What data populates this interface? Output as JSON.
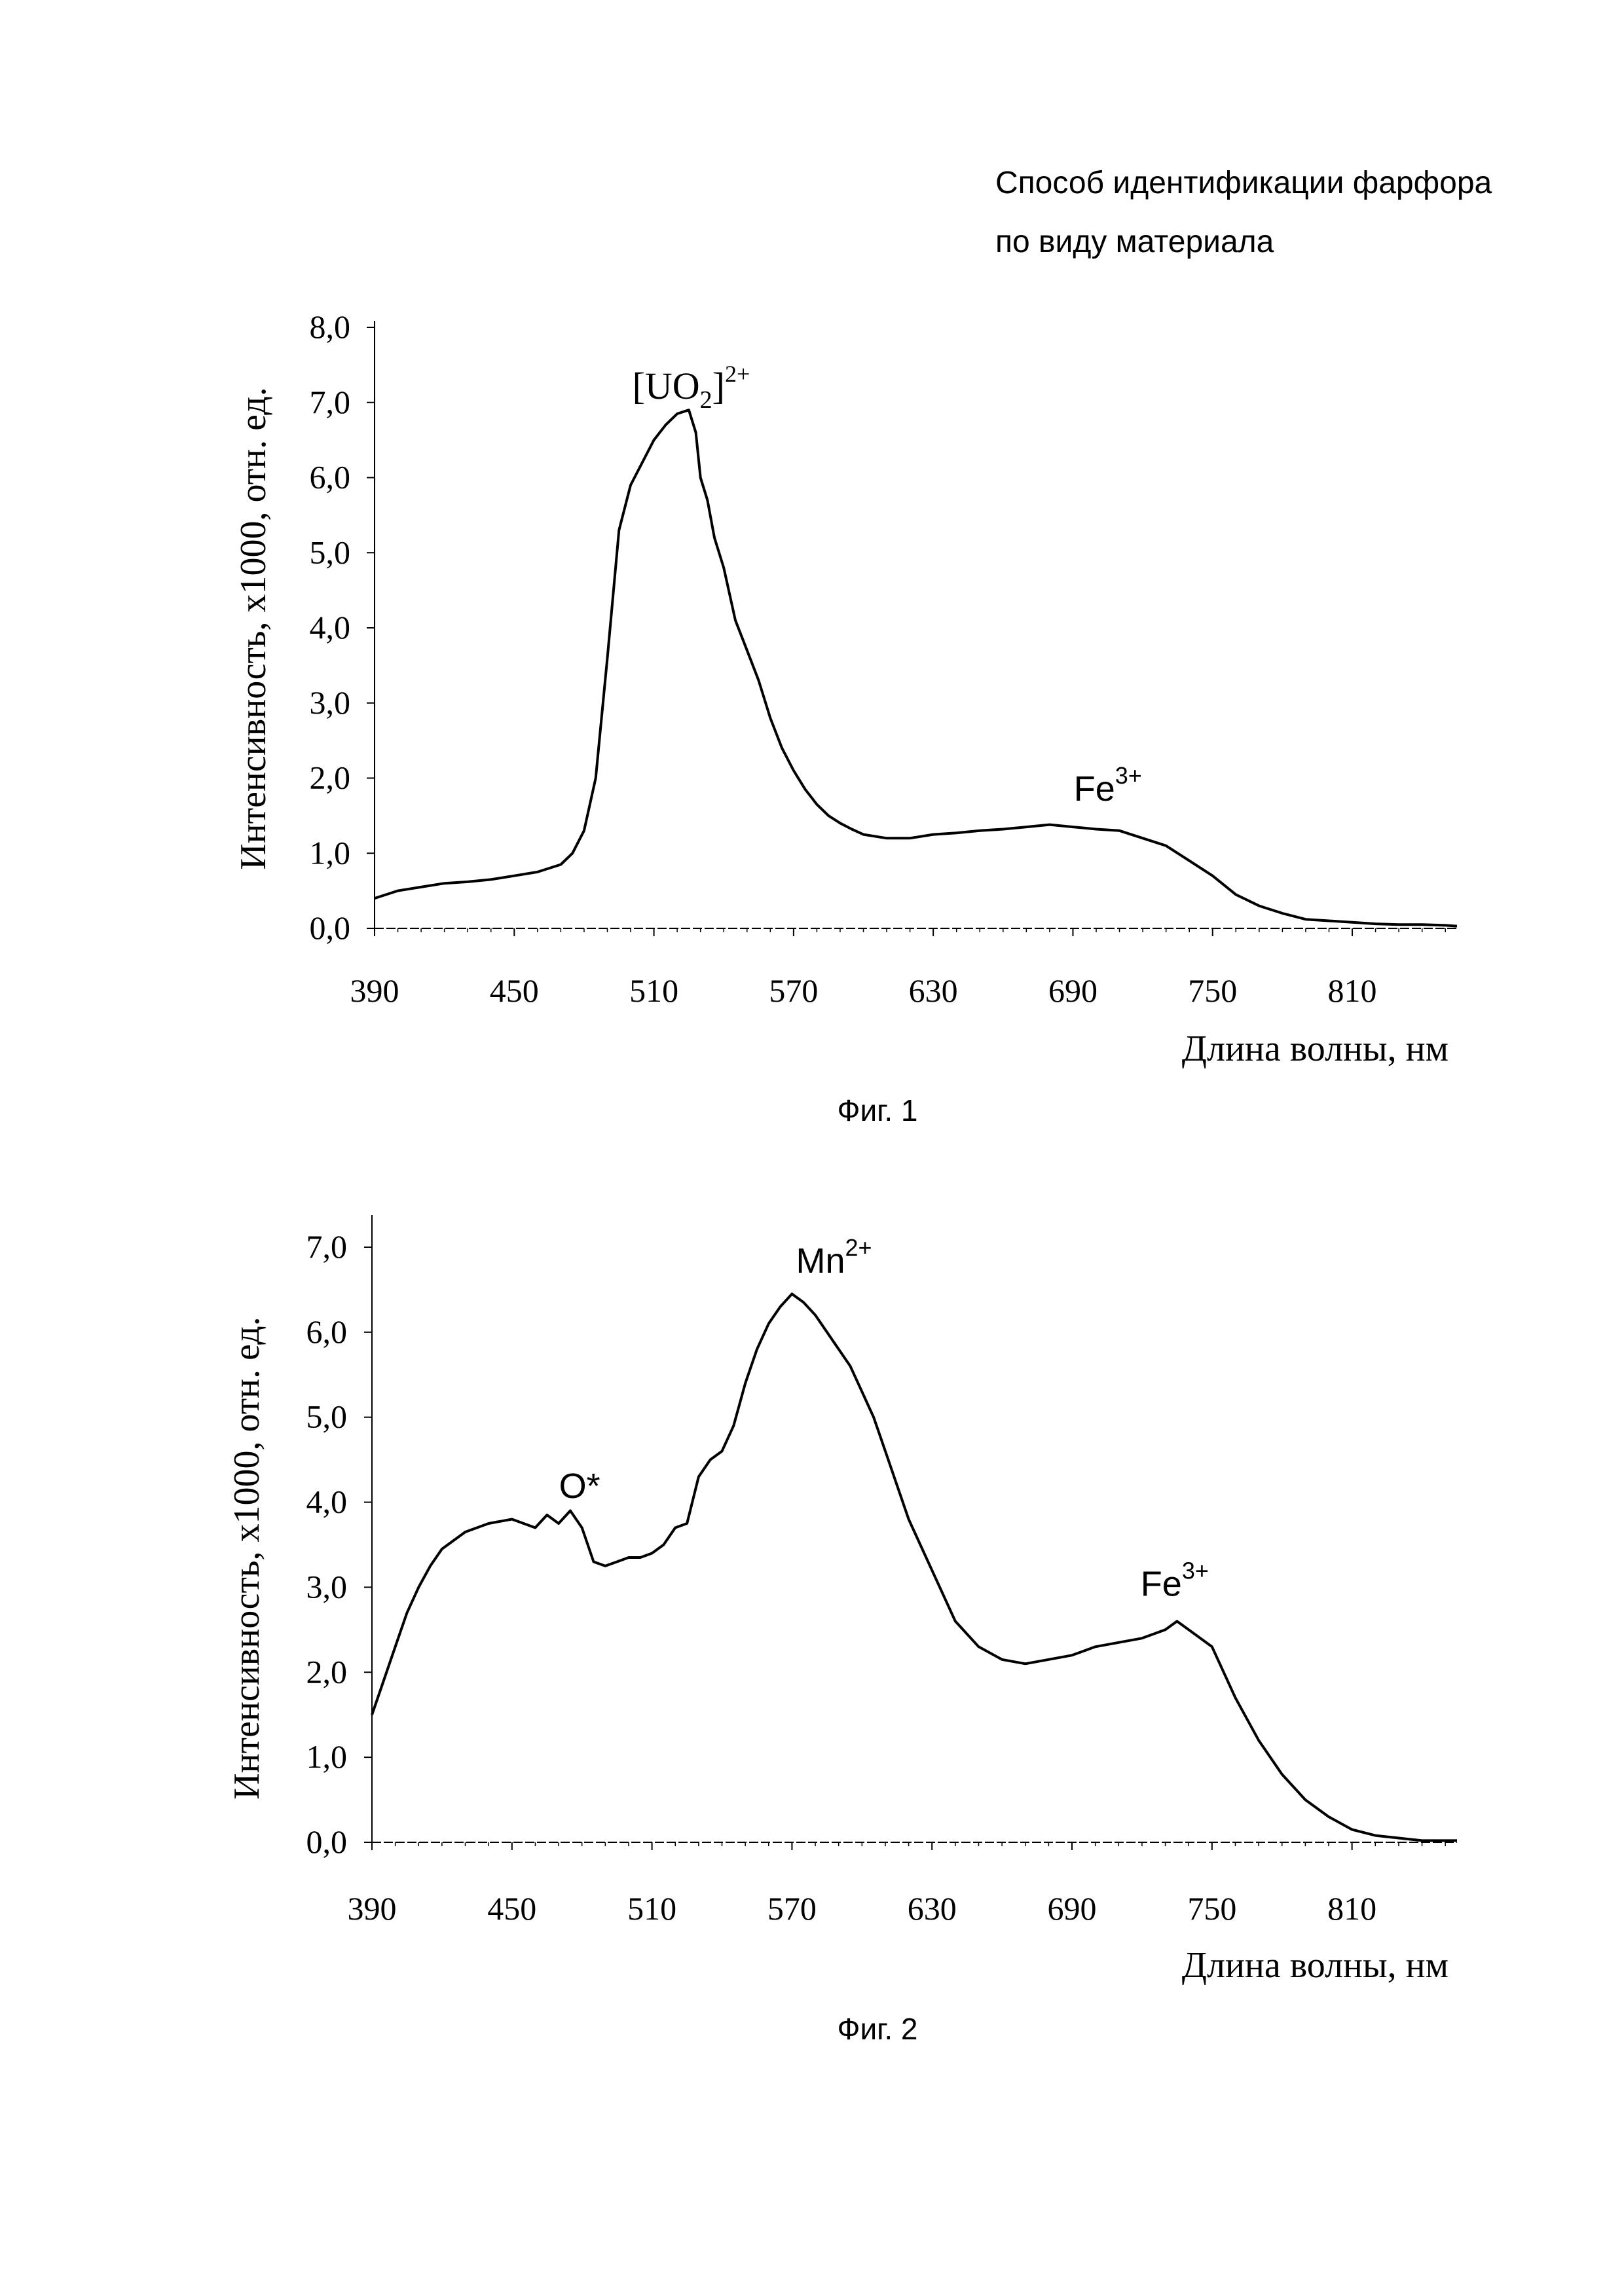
{
  "header": {
    "line1": "Способ идентификации фарфора",
    "line2": "по виду материала"
  },
  "chart_data": [
    {
      "type": "line",
      "caption": "Фиг. 1",
      "xlabel": "Длина волны, нм",
      "ylabel": "Интенсивность,  х1000, отн. ед.",
      "xlim": [
        390,
        855
      ],
      "ylim": [
        0,
        8
      ],
      "xticks": [
        "390",
        "450",
        "510",
        "570",
        "630",
        "690",
        "750",
        "810"
      ],
      "yticks": [
        "0,0",
        "1,0",
        "2,0",
        "3,0",
        "4,0",
        "5,0",
        "6,0",
        "7,0",
        "8,0"
      ],
      "annotations": [
        {
          "base": "[UO",
          "sub": "2",
          "close": "]",
          "sup": "2+",
          "x": 526,
          "y": 7.05
        },
        {
          "base": "Fe",
          "sup": "3+",
          "x": 705,
          "y": 1.7
        }
      ],
      "series": [
        {
          "name": "spectrum",
          "x": [
            390,
            400,
            410,
            420,
            430,
            440,
            450,
            460,
            470,
            475,
            480,
            485,
            490,
            495,
            500,
            505,
            510,
            515,
            520,
            525,
            528,
            530,
            533,
            536,
            540,
            545,
            550,
            555,
            560,
            565,
            570,
            575,
            580,
            585,
            590,
            595,
            600,
            610,
            620,
            630,
            640,
            650,
            660,
            670,
            680,
            690,
            700,
            710,
            720,
            730,
            740,
            750,
            760,
            770,
            780,
            790,
            800,
            810,
            820,
            830,
            840,
            850,
            855
          ],
          "y": [
            0.4,
            0.5,
            0.55,
            0.6,
            0.62,
            0.65,
            0.7,
            0.75,
            0.85,
            1.0,
            1.3,
            2.0,
            3.6,
            5.3,
            5.9,
            6.2,
            6.5,
            6.7,
            6.85,
            6.9,
            6.6,
            6.0,
            5.7,
            5.2,
            4.8,
            4.1,
            3.7,
            3.3,
            2.8,
            2.4,
            2.1,
            1.85,
            1.65,
            1.5,
            1.4,
            1.32,
            1.25,
            1.2,
            1.2,
            1.25,
            1.27,
            1.3,
            1.32,
            1.35,
            1.38,
            1.35,
            1.32,
            1.3,
            1.2,
            1.1,
            0.9,
            0.7,
            0.45,
            0.3,
            0.2,
            0.12,
            0.1,
            0.08,
            0.06,
            0.05,
            0.05,
            0.04,
            0.03
          ]
        }
      ]
    },
    {
      "type": "line",
      "caption": "Фиг. 2",
      "xlabel": "Длина волны, нм",
      "ylabel": "Интенсивность,  х1000, отн. ед.",
      "xlim": [
        390,
        855
      ],
      "ylim": [
        0,
        7.3
      ],
      "xticks": [
        "390",
        "450",
        "510",
        "570",
        "630",
        "690",
        "750",
        "810"
      ],
      "yticks": [
        "0,0",
        "1,0",
        "2,0",
        "3,0",
        "4,0",
        "5,0",
        "6,0",
        "7,0"
      ],
      "annotations": [
        {
          "base": "O*",
          "x": 479,
          "y": 4.05
        },
        {
          "base": "Mn",
          "sup": "2+",
          "x": 588,
          "y": 6.7
        },
        {
          "base": "Fe",
          "sup": "3+",
          "x": 734,
          "y": 2.9
        }
      ],
      "series": [
        {
          "name": "spectrum",
          "x": [
            390,
            395,
            400,
            405,
            410,
            415,
            420,
            425,
            430,
            440,
            450,
            460,
            465,
            470,
            475,
            480,
            485,
            490,
            495,
            500,
            505,
            510,
            515,
            520,
            525,
            530,
            535,
            540,
            545,
            550,
            555,
            560,
            565,
            570,
            575,
            580,
            585,
            590,
            595,
            600,
            605,
            610,
            615,
            620,
            625,
            630,
            640,
            650,
            660,
            670,
            680,
            690,
            700,
            710,
            720,
            730,
            735,
            740,
            745,
            750,
            755,
            760,
            770,
            780,
            790,
            800,
            810,
            820,
            830,
            840,
            850,
            855
          ],
          "y": [
            1.5,
            1.9,
            2.3,
            2.7,
            3.0,
            3.25,
            3.45,
            3.55,
            3.65,
            3.75,
            3.8,
            3.7,
            3.85,
            3.75,
            3.9,
            3.7,
            3.3,
            3.25,
            3.3,
            3.35,
            3.35,
            3.4,
            3.5,
            3.7,
            3.75,
            4.3,
            4.5,
            4.6,
            4.9,
            5.4,
            5.8,
            6.1,
            6.3,
            6.45,
            6.35,
            6.2,
            6.0,
            5.8,
            5.6,
            5.3,
            5.0,
            4.6,
            4.2,
            3.8,
            3.5,
            3.2,
            2.6,
            2.3,
            2.15,
            2.1,
            2.15,
            2.2,
            2.3,
            2.35,
            2.4,
            2.5,
            2.6,
            2.5,
            2.4,
            2.3,
            2.0,
            1.7,
            1.2,
            0.8,
            0.5,
            0.3,
            0.15,
            0.08,
            0.05,
            0.02,
            0.02,
            0.02
          ]
        }
      ]
    }
  ]
}
